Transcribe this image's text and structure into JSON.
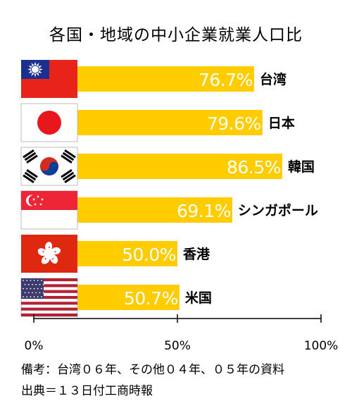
{
  "title": "各国・地域の中小企業就業人口比",
  "notes": {
    "remark": "備考：台湾０６年、その他０４年、０５年の資料",
    "source": "出典＝１３日付工商時報"
  },
  "colors": {
    "bar": "#FFCC00",
    "bar_label": "#ffffff",
    "axis": "#000000"
  },
  "chart_data": {
    "type": "bar",
    "orientation": "horizontal",
    "categories": [
      "台湾",
      "日本",
      "韓国",
      "シンガポール",
      "香港",
      "米国"
    ],
    "values": [
      76.7,
      79.6,
      86.5,
      69.1,
      50.0,
      50.7
    ],
    "value_labels": [
      "76.7%",
      "79.6%",
      "86.5%",
      "69.1%",
      "50.0%",
      "50.7%"
    ],
    "flag_icons": [
      "taiwan-flag-icon",
      "japan-flag-icon",
      "south-korea-flag-icon",
      "singapore-flag-icon",
      "hong-kong-flag-icon",
      "usa-flag-icon"
    ],
    "xlim": [
      0,
      100
    ],
    "xticks": [
      0,
      50,
      100
    ],
    "xtick_labels": [
      "0%",
      "50%",
      "100%"
    ],
    "grid": false
  }
}
